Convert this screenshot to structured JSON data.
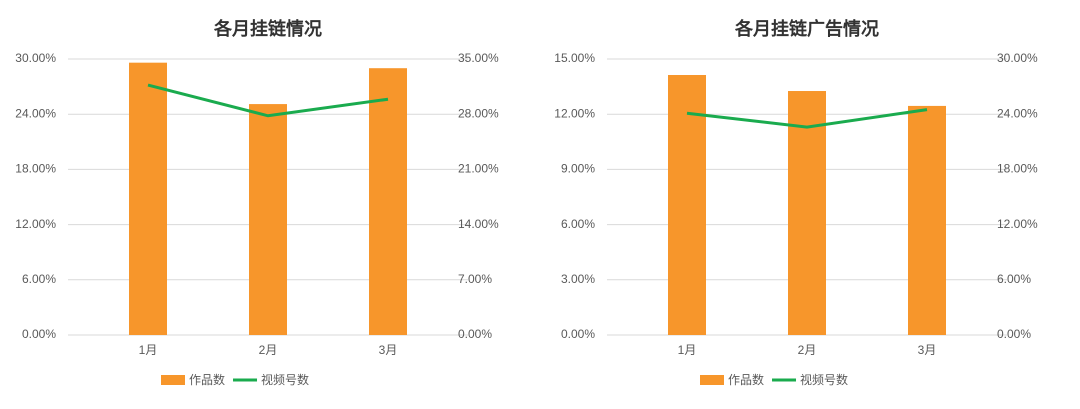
{
  "chart_data": [
    {
      "type": "combo",
      "title": "各月挂链情况",
      "categories": [
        "1月",
        "2月",
        "3月"
      ],
      "series": [
        {
          "name": "作品数",
          "type": "bar",
          "color": "#f7962b",
          "values": [
            29.6,
            25.1,
            29.0
          ]
        },
        {
          "name": "视频号数",
          "type": "line",
          "axis": "y2",
          "color": "#1aab4e",
          "values": [
            31.7,
            27.8,
            29.9
          ]
        }
      ],
      "ylim": [
        0,
        30
      ],
      "yticks": [
        {
          "value": 0,
          "label": "0.00%"
        },
        {
          "value": 6,
          "label": "6.00%"
        },
        {
          "value": 12,
          "label": "12.00%"
        },
        {
          "value": 18,
          "label": "18.00%"
        },
        {
          "value": 24,
          "label": "24.00%"
        },
        {
          "value": 30,
          "label": "30.00%"
        }
      ],
      "y2lim": [
        0,
        35
      ],
      "y2ticks": [
        {
          "value": 0,
          "label": "0.00%"
        },
        {
          "value": 7,
          "label": "7.00%"
        },
        {
          "value": 14,
          "label": "14.00%"
        },
        {
          "value": 21,
          "label": "21.00%"
        },
        {
          "value": 28,
          "label": "28.00%"
        },
        {
          "value": 35,
          "label": "35.00%"
        }
      ],
      "grid": true,
      "legend": "bottom"
    },
    {
      "type": "combo",
      "title": "各月挂链广告情况",
      "categories": [
        "1月",
        "2月",
        "3月"
      ],
      "series": [
        {
          "name": "作品数",
          "type": "bar",
          "color": "#f7962b",
          "values": [
            14.13,
            13.26,
            12.45
          ]
        },
        {
          "name": "视频号数",
          "type": "line",
          "axis": "y2",
          "color": "#1aab4e",
          "values": [
            24.1,
            22.6,
            24.5
          ]
        }
      ],
      "ylim": [
        0,
        15
      ],
      "yticks": [
        {
          "value": 0,
          "label": "0.00%"
        },
        {
          "value": 3,
          "label": "3.00%"
        },
        {
          "value": 6,
          "label": "6.00%"
        },
        {
          "value": 9,
          "label": "9.00%"
        },
        {
          "value": 12,
          "label": "12.00%"
        },
        {
          "value": 15,
          "label": "15.00%"
        }
      ],
      "y2lim": [
        0,
        30
      ],
      "y2ticks": [
        {
          "value": 0,
          "label": "0.00%"
        },
        {
          "value": 6,
          "label": "6.00%"
        },
        {
          "value": 12,
          "label": "12.00%"
        },
        {
          "value": 18,
          "label": "18.00%"
        },
        {
          "value": 24,
          "label": "24.00%"
        },
        {
          "value": 30,
          "label": "30.00%"
        }
      ],
      "grid": true,
      "legend": "bottom"
    }
  ]
}
